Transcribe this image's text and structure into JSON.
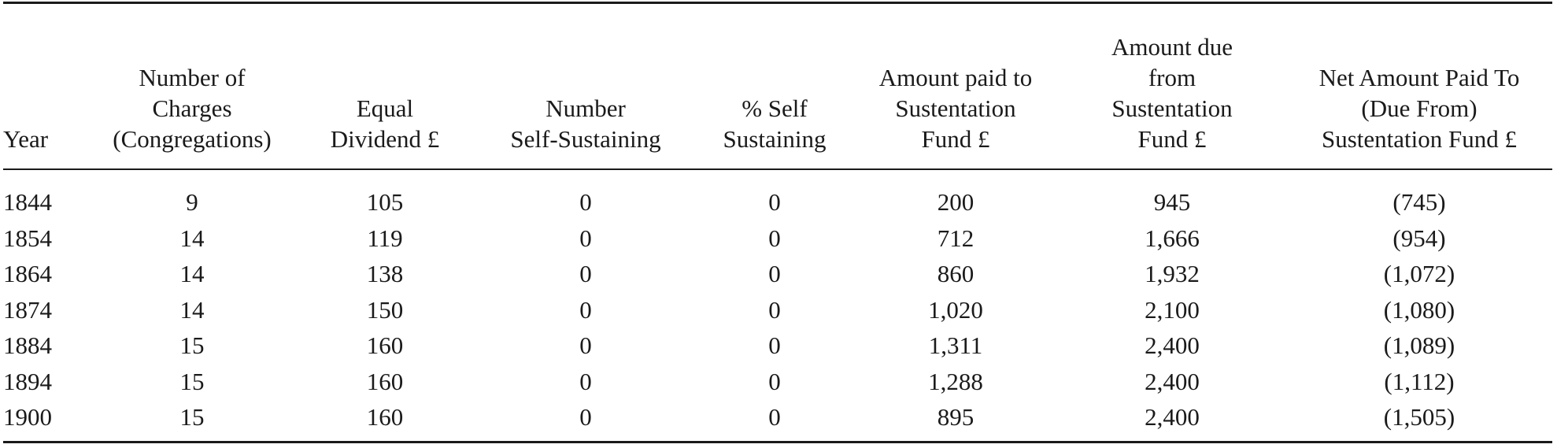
{
  "table": {
    "headers": [
      "Year",
      "Number of\nCharges\n(Congregations)",
      "Equal\nDividend £",
      "Number\nSelf-Sustaining",
      "% Self\nSustaining",
      "Amount paid to\nSustentation\nFund £",
      "Amount due\nfrom\nSustentation\nFund £",
      "Net Amount Paid To\n(Due From)\nSustentation Fund £"
    ],
    "rows": [
      [
        "1844",
        "9",
        "105",
        "0",
        "0",
        "200",
        "945",
        "(745)"
      ],
      [
        "1854",
        "14",
        "119",
        "0",
        "0",
        "712",
        "1,666",
        "(954)"
      ],
      [
        "1864",
        "14",
        "138",
        "0",
        "0",
        "860",
        "1,932",
        "(1,072)"
      ],
      [
        "1874",
        "14",
        "150",
        "0",
        "0",
        "1,020",
        "2,100",
        "(1,080)"
      ],
      [
        "1884",
        "15",
        "160",
        "0",
        "0",
        "1,311",
        "2,400",
        "(1,089)"
      ],
      [
        "1894",
        "15",
        "160",
        "0",
        "0",
        "1,288",
        "2,400",
        "(1,112)"
      ],
      [
        "1900",
        "15",
        "160",
        "0",
        "0",
        "895",
        "2,400",
        "(1,505)"
      ]
    ]
  }
}
